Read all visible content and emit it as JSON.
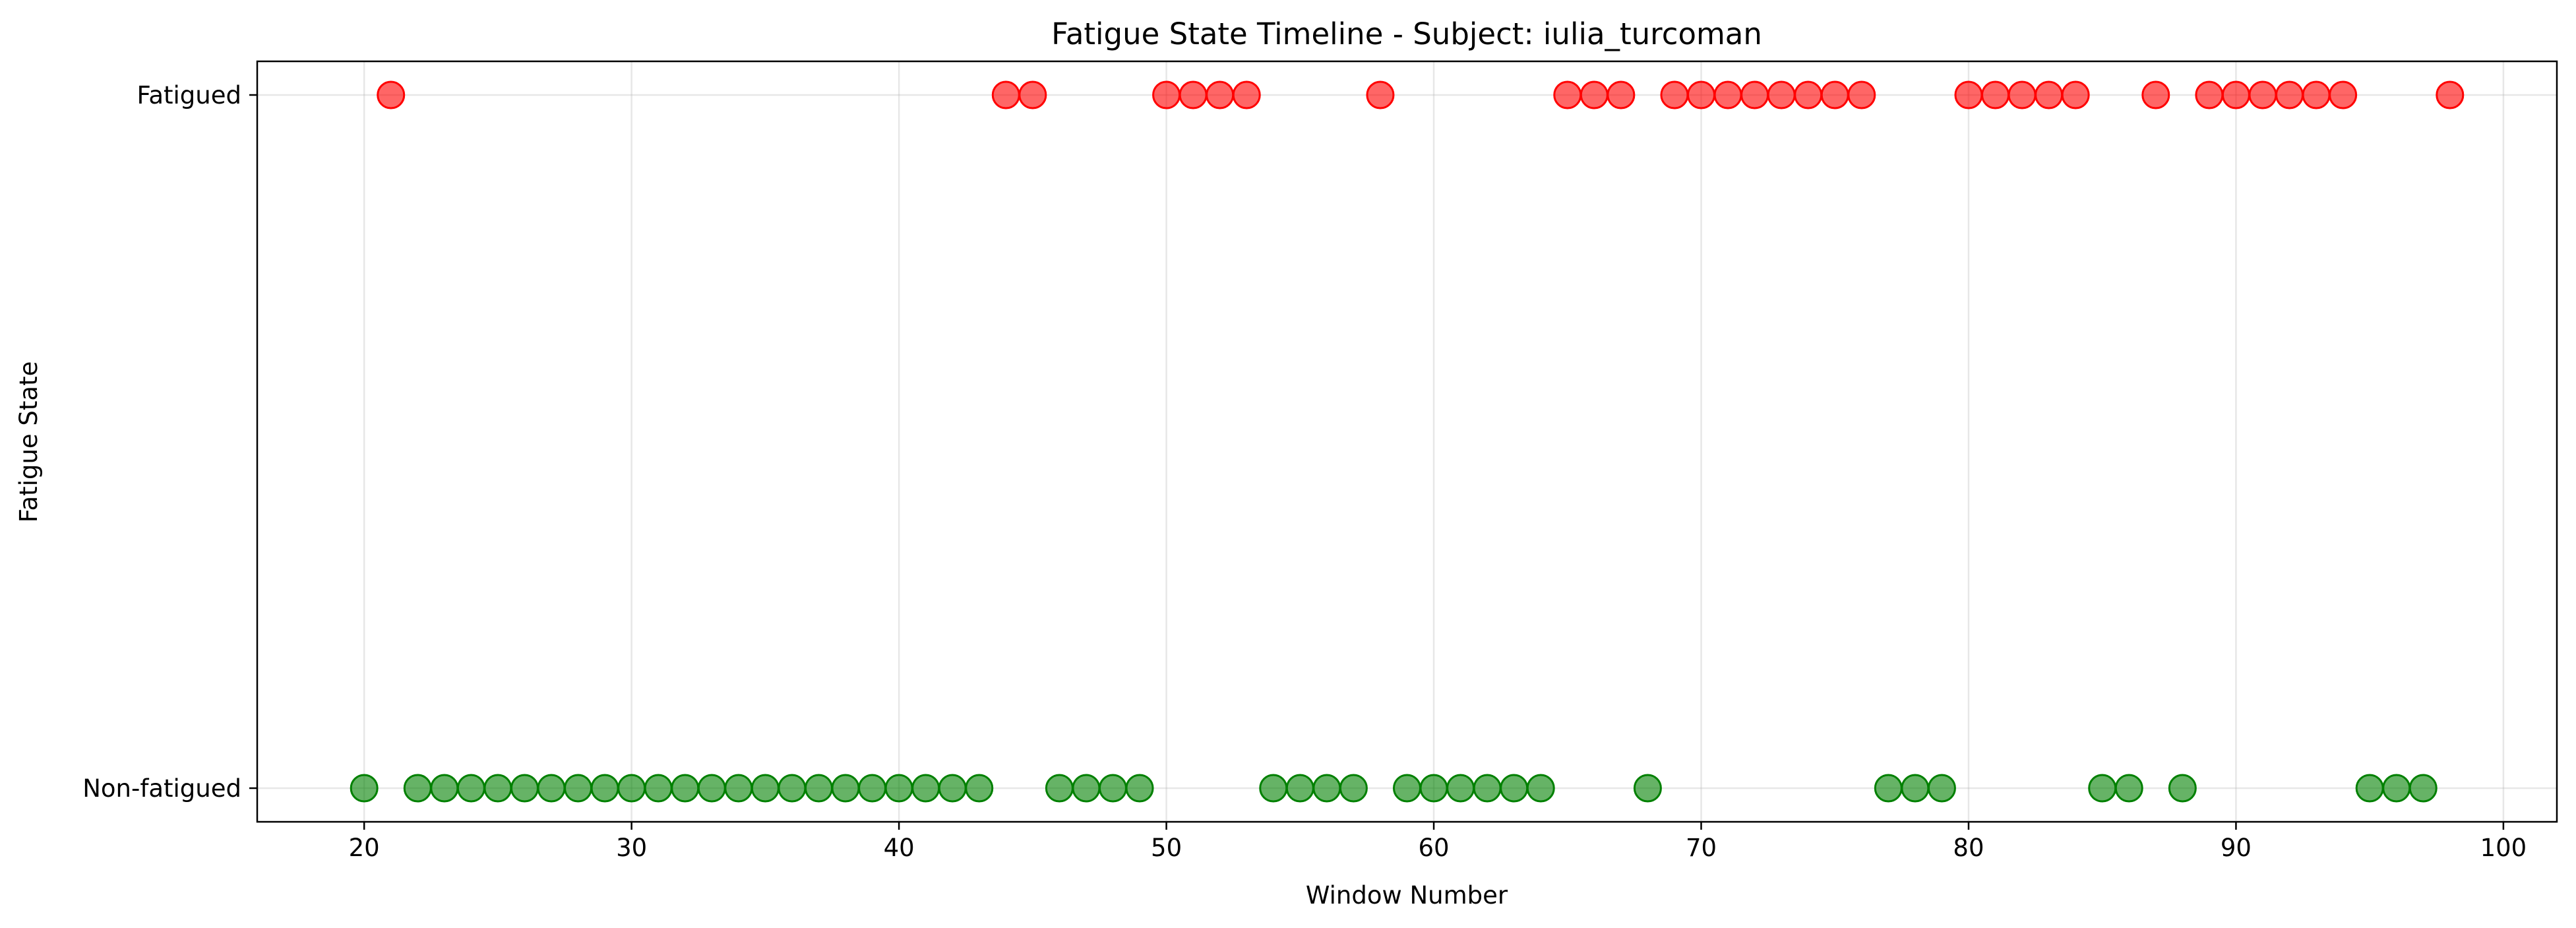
{
  "chart_data": {
    "type": "scatter",
    "title": "Fatigue State Timeline - Subject: iulia_turcoman",
    "xlabel": "Window Number",
    "ylabel": "Fatigue State",
    "xlim": [
      16,
      102
    ],
    "x_ticks": [
      20,
      30,
      40,
      50,
      60,
      70,
      80,
      90,
      100
    ],
    "y_categories": [
      "Non-fatigued",
      "Fatigued"
    ],
    "grid": true,
    "colors": {
      "Fatigued": "#ff0000",
      "Non-fatigued": "#008000"
    },
    "points": {
      "Fatigued": [
        21,
        44,
        45,
        50,
        51,
        52,
        53,
        58,
        65,
        66,
        67,
        69,
        70,
        71,
        72,
        73,
        74,
        75,
        76,
        80,
        81,
        82,
        83,
        84,
        87,
        89,
        90,
        91,
        92,
        93,
        94,
        98
      ],
      "Non-fatigued": [
        20,
        22,
        23,
        24,
        25,
        26,
        27,
        28,
        29,
        30,
        31,
        32,
        33,
        34,
        35,
        36,
        37,
        38,
        39,
        40,
        41,
        42,
        43,
        46,
        47,
        48,
        49,
        54,
        55,
        56,
        57,
        59,
        60,
        61,
        62,
        63,
        64,
        68,
        77,
        78,
        79,
        85,
        86,
        88,
        95,
        96,
        97
      ]
    }
  }
}
